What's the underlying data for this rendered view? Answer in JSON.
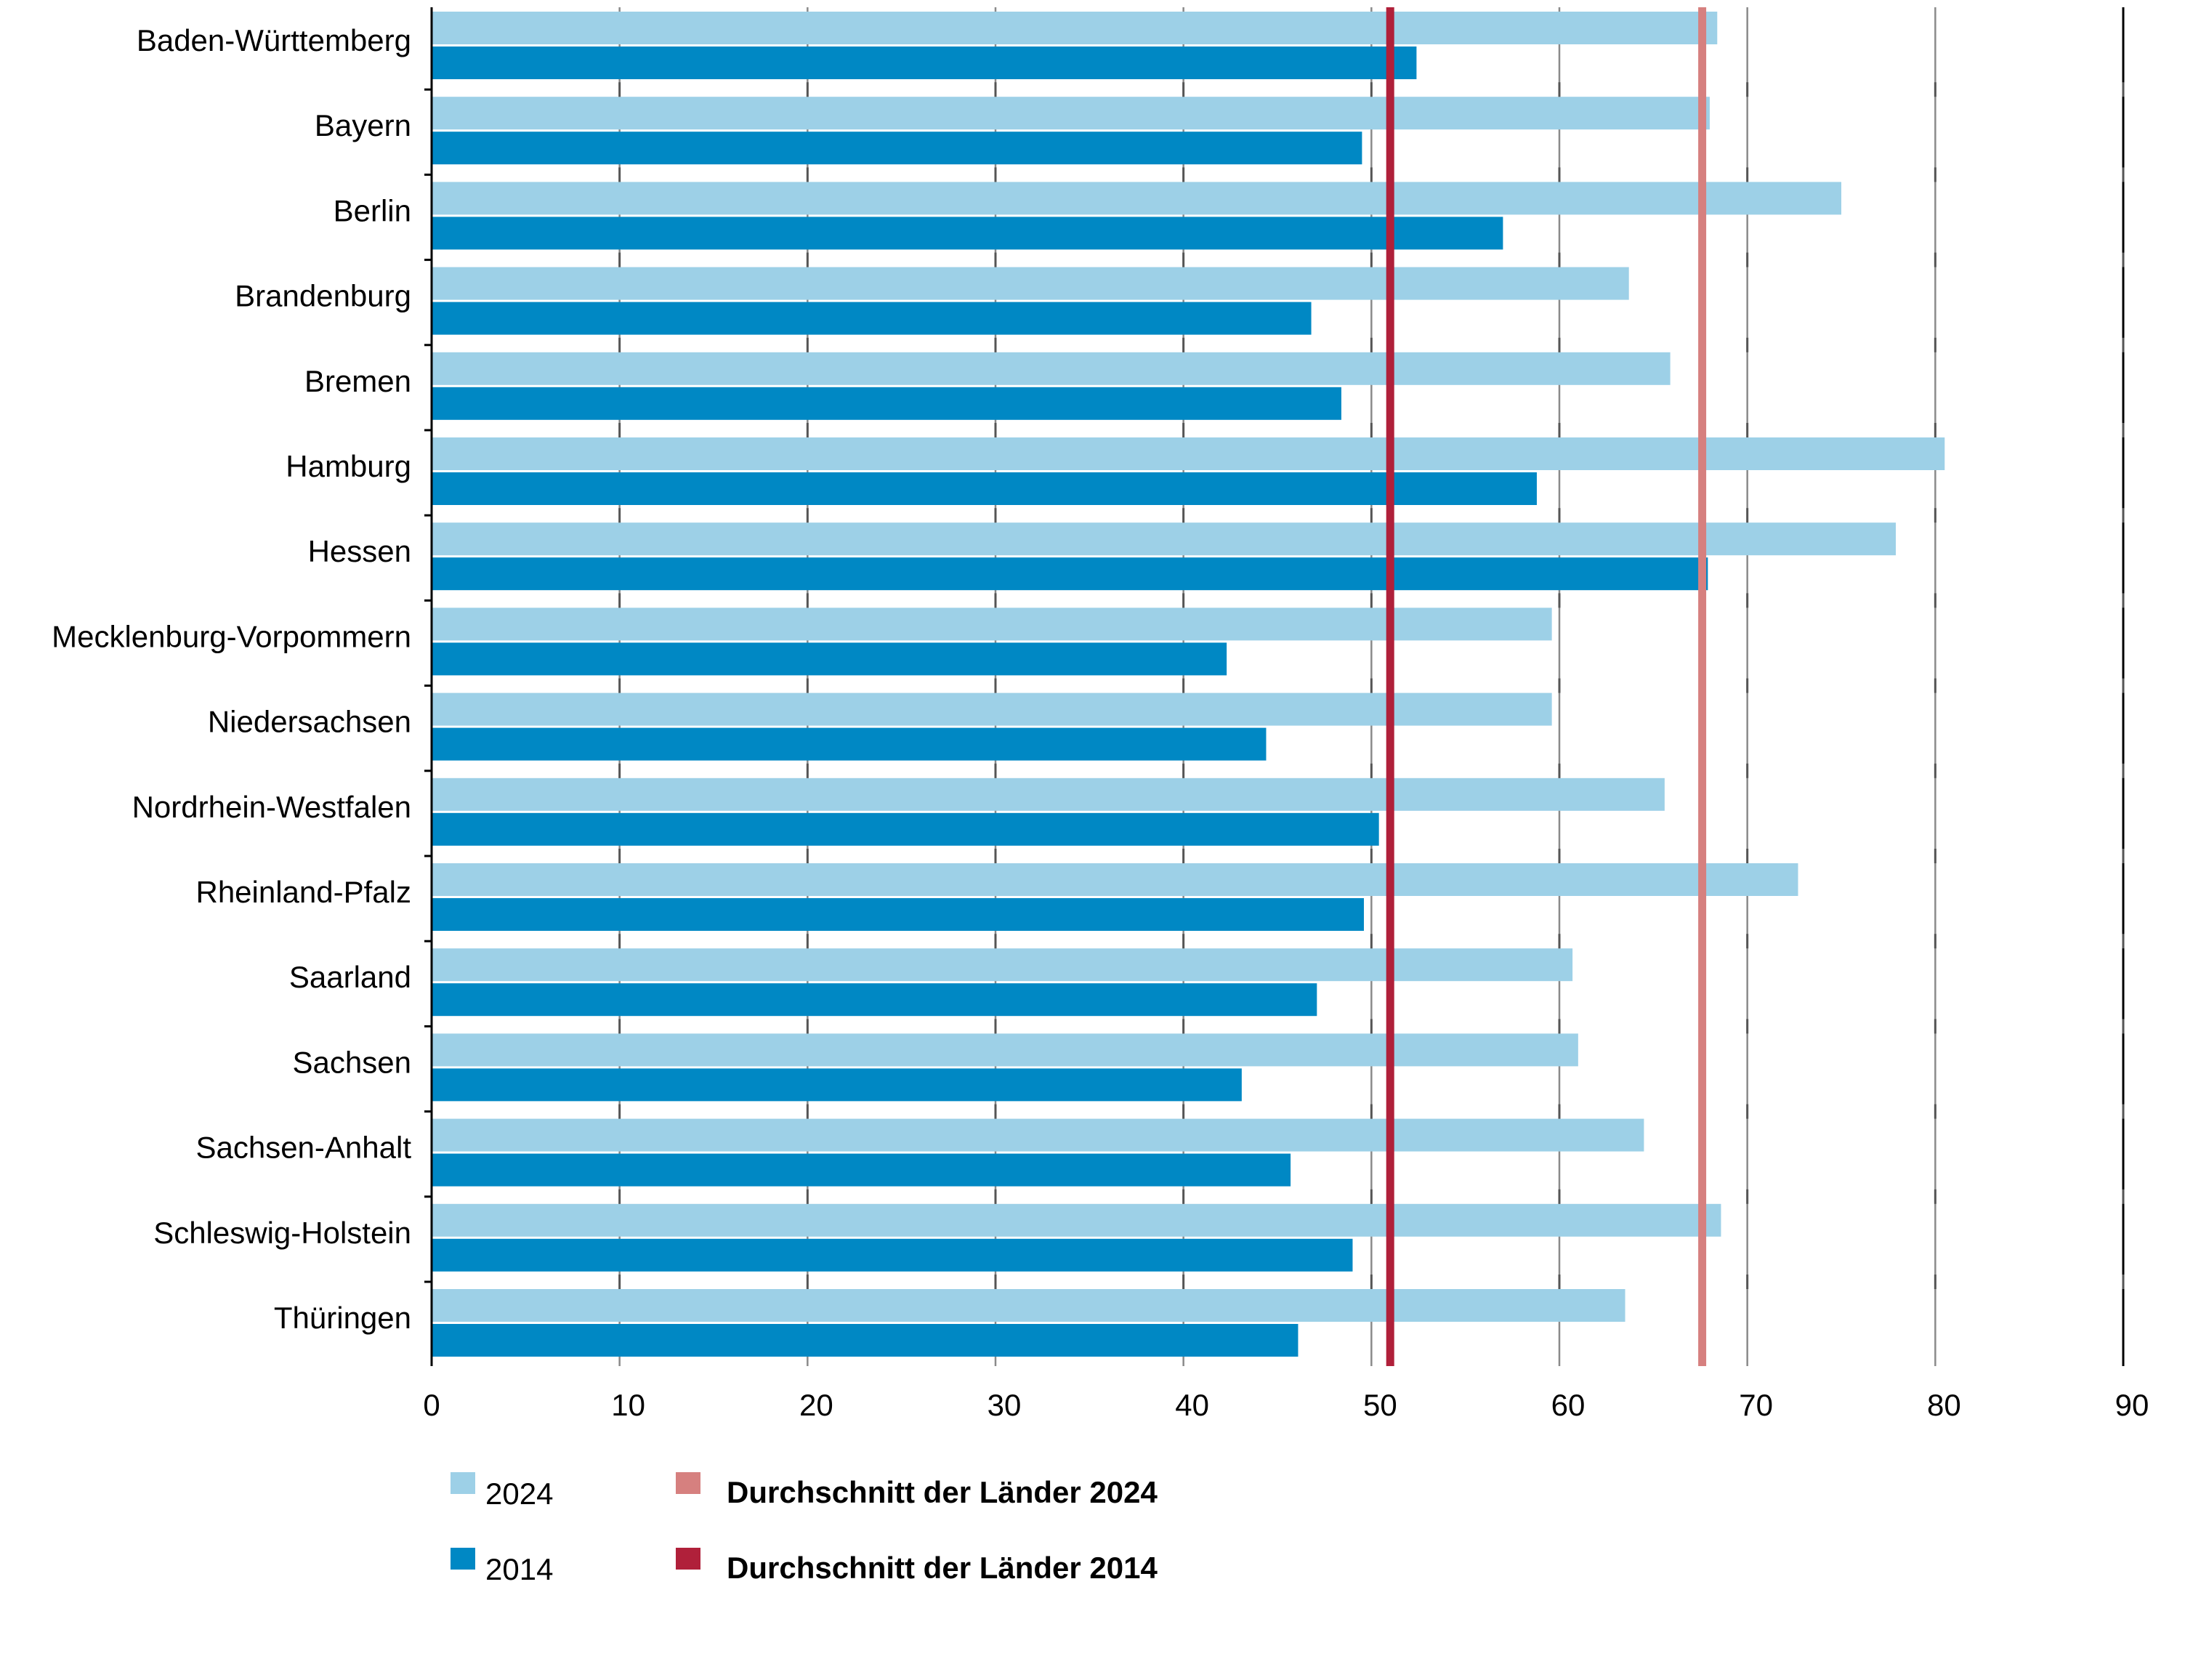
{
  "chart_data": {
    "type": "bar",
    "orientation": "horizontal",
    "title": "",
    "xlabel": "",
    "ylabel": "",
    "xlim": [
      0,
      90
    ],
    "x_ticks": [
      0,
      10,
      20,
      30,
      40,
      50,
      60,
      70,
      80,
      90
    ],
    "grid": true,
    "legend_position": "bottom-left",
    "categories": [
      "Baden-Württemberg",
      "Bayern",
      "Berlin",
      "Brandenburg",
      "Bremen",
      "Hamburg",
      "Hessen",
      "Mecklenburg-Vorpommern",
      "Niedersachsen",
      "Nordrhein-Westfalen",
      "Rheinland-Pfalz",
      "Saarland",
      "Sachsen",
      "Sachsen-Anhalt",
      "Schleswig-Holstein",
      "Thüringen"
    ],
    "series": [
      {
        "name": "2024",
        "color": "#9dd0e7",
        "values": [
          68.4,
          68.0,
          75.0,
          63.7,
          65.9,
          80.5,
          77.9,
          59.6,
          59.6,
          65.6,
          72.7,
          60.7,
          61.0,
          64.5,
          68.6,
          63.5
        ]
      },
      {
        "name": "2014",
        "color": "#0088c4",
        "values": [
          52.4,
          49.5,
          57.0,
          46.8,
          48.4,
          58.8,
          67.9,
          42.3,
          44.4,
          50.4,
          49.6,
          47.1,
          43.1,
          45.7,
          49.0,
          46.1
        ]
      }
    ],
    "reference_lines": [
      {
        "name": "Durchschnitt der Länder 2024",
        "value": 67.6,
        "color": "#d6807f"
      },
      {
        "name": "Durchschnitt der Länder 2014",
        "value": 51.0,
        "color": "#b0203a"
      }
    ]
  }
}
